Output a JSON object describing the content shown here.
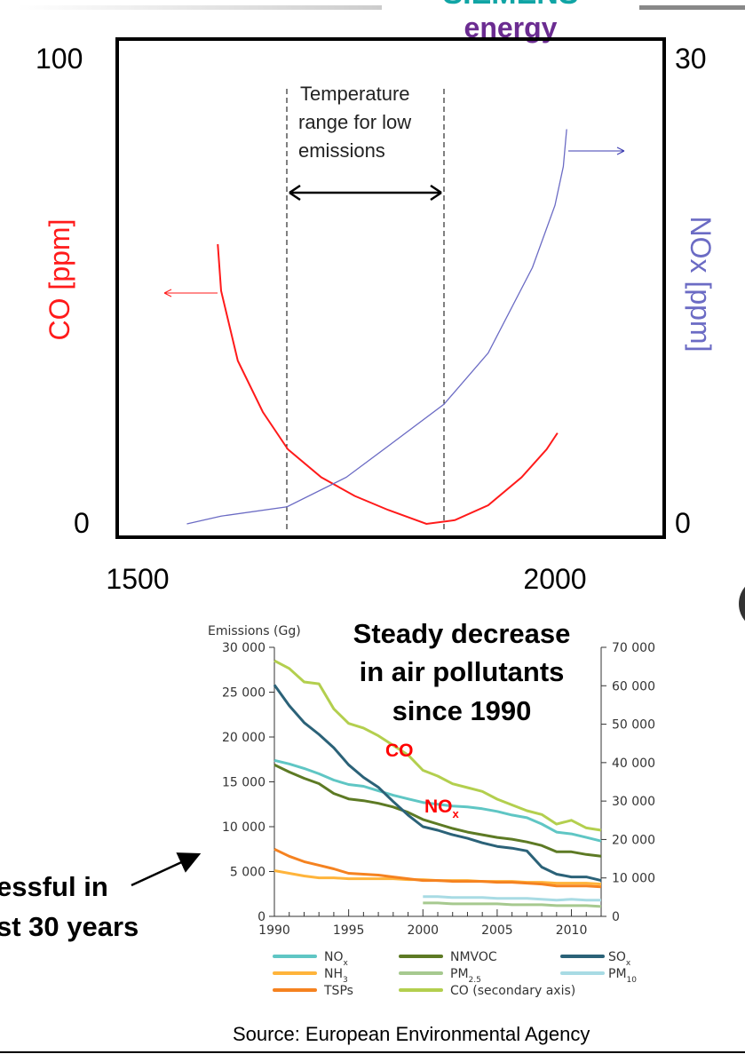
{
  "header": {
    "logo_text_top": "SIEMENS",
    "logo_text_bottom": "energy"
  },
  "side_text": {
    "line1": "essful in",
    "line2": "st 30 years"
  },
  "source": "Source: European Environmental Agency",
  "colors": {
    "co": "#ff1a1a",
    "nox_top": "#6b6bc4",
    "nox": "#5fc6c4",
    "nmvoc": "#5d7a24",
    "sox": "#2b6278",
    "nh3": "#ffb43b",
    "pm25": "#a6c98f",
    "pm10": "#a8dbe4",
    "tsp": "#f58220",
    "co2": "#b3cf4e"
  },
  "chart_data": [
    {
      "type": "line",
      "title": "",
      "annotation": [
        "Temperature",
        "range for low",
        "emissions"
      ],
      "xlabel": "",
      "ylabel": "CO [ppm]",
      "y2label": "NOx [ppm]",
      "xlim": [
        1500,
        2100
      ],
      "xticks": [
        "1500",
        "2000"
      ],
      "ylim": [
        0,
        100
      ],
      "yticks": [
        "100",
        "0"
      ],
      "y2lim": [
        0,
        30
      ],
      "y2ticks": [
        "30",
        "0"
      ],
      "low_emission_range": [
        1679,
        1867
      ],
      "series": [
        {
          "name": "CO",
          "axis": "left",
          "x": [
            1596,
            1600,
            1620,
            1650,
            1680,
            1720,
            1760,
            1800,
            1846,
            1880,
            1920,
            1960,
            1990,
            2003
          ],
          "y": [
            60,
            50,
            35,
            24,
            16,
            10,
            6,
            3,
            0,
            0.8,
            4,
            10,
            16,
            19.5
          ]
        },
        {
          "name": "NOx",
          "axis": "right",
          "x": [
            1559,
            1600,
            1679,
            1750,
            1800,
            1867,
            1920,
            1973,
            2000,
            2010,
            2014
          ],
          "y": [
            0,
            0.5,
            1.1,
            3,
            5,
            7.7,
            11,
            16.5,
            20.5,
            23,
            25.4
          ]
        }
      ]
    },
    {
      "type": "line",
      "title": [
        "Steady decrease",
        "in air pollutants",
        "since 1990"
      ],
      "ylabel": "Emissions (Gg)",
      "xlim": [
        1990,
        2012
      ],
      "xticks": [
        "1990",
        "1995",
        "2000",
        "2005",
        "2010"
      ],
      "ylim": [
        0,
        30000
      ],
      "yticks": [
        "0",
        "5 000",
        "10 000",
        "15 000",
        "20 000",
        "25 000",
        "30 000"
      ],
      "y2lim": [
        0,
        70000
      ],
      "y2ticks": [
        "0",
        "10 000",
        "20 000",
        "30 000",
        "40 000",
        "50 000",
        "60 000",
        "70 000"
      ],
      "labels": {
        "co": "CO",
        "nox": "NO",
        "nox_sub": "x"
      },
      "series": [
        {
          "key": "nox",
          "name": "NO",
          "sub": "x",
          "axis": "left",
          "start": 1990,
          "values": [
            17400,
            17000,
            16500,
            15900,
            15200,
            14700,
            14500,
            14000,
            13500,
            13100,
            12700,
            12500,
            12300,
            12200,
            12000,
            11700,
            11300,
            11000,
            10300,
            9400,
            9200,
            8800,
            8400
          ]
        },
        {
          "key": "nmvoc",
          "name": "NMVOC",
          "sub": "",
          "axis": "left",
          "start": 1990,
          "values": [
            16900,
            16100,
            15400,
            14800,
            13700,
            13100,
            12900,
            12600,
            12200,
            11600,
            10800,
            10300,
            9800,
            9400,
            9100,
            8800,
            8600,
            8300,
            7900,
            7200,
            7200,
            6900,
            6700
          ]
        },
        {
          "key": "sox",
          "name": "SO",
          "sub": "x",
          "axis": "left",
          "start": 1990,
          "values": [
            25800,
            23500,
            21600,
            20300,
            18800,
            16900,
            15500,
            14400,
            12800,
            11300,
            10000,
            9600,
            9100,
            8700,
            8200,
            7800,
            7600,
            7300,
            5500,
            4700,
            4400,
            4400,
            4000
          ]
        },
        {
          "key": "nh3",
          "name": "NH",
          "sub": "3",
          "axis": "left",
          "start": 1990,
          "values": [
            5100,
            4800,
            4500,
            4300,
            4300,
            4200,
            4200,
            4200,
            4200,
            4100,
            4100,
            4000,
            4000,
            4000,
            3900,
            3900,
            3900,
            3800,
            3800,
            3700,
            3700,
            3700,
            3600
          ]
        },
        {
          "key": "pm25",
          "name": "PM",
          "sub": "2.5",
          "axis": "left",
          "start": 2000,
          "values": [
            1500,
            1500,
            1400,
            1400,
            1400,
            1400,
            1300,
            1300,
            1300,
            1200,
            1200,
            1200,
            1100
          ]
        },
        {
          "key": "pm10",
          "name": "PM",
          "sub": "10",
          "axis": "left",
          "start": 2000,
          "values": [
            2200,
            2200,
            2100,
            2100,
            2100,
            2000,
            2000,
            2000,
            1900,
            1800,
            1900,
            1800,
            1800
          ]
        },
        {
          "key": "tsp",
          "name": "TSPs",
          "sub": "",
          "axis": "left",
          "start": 1990,
          "values": [
            7500,
            6700,
            6100,
            5700,
            5300,
            4800,
            4700,
            4600,
            4400,
            4200,
            4000,
            4000,
            3900,
            3900,
            3900,
            3800,
            3800,
            3700,
            3600,
            3400,
            3400,
            3400,
            3300
          ]
        },
        {
          "key": "co2",
          "name": "CO (secondary axis)",
          "sub": "",
          "axis": "right",
          "start": 1990,
          "values": [
            66500,
            64500,
            61000,
            60500,
            54000,
            50200,
            49000,
            47000,
            44500,
            42000,
            38000,
            36500,
            34500,
            33500,
            32500,
            30500,
            29000,
            27500,
            26500,
            24000,
            25000,
            23000,
            22400
          ]
        }
      ]
    }
  ]
}
